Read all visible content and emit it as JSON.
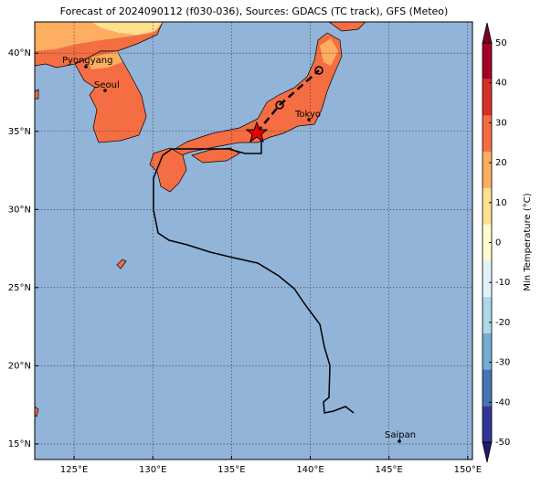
{
  "title": "Forecast of 2024090112 (f030-036), Sources: GDACS (TC track), GFS (Meteo)",
  "map": {
    "xlim": [
      122.5,
      150.3
    ],
    "ylim": [
      14,
      42
    ],
    "xticks": [
      {
        "value": 125,
        "label": "125°E"
      },
      {
        "value": 130,
        "label": "130°E"
      },
      {
        "value": 135,
        "label": "135°E"
      },
      {
        "value": 140,
        "label": "140°E"
      },
      {
        "value": 145,
        "label": "145°E"
      },
      {
        "value": 150,
        "label": "150°E"
      }
    ],
    "yticks": [
      {
        "value": 15,
        "label": "15°N"
      },
      {
        "value": 20,
        "label": "20°N"
      },
      {
        "value": 25,
        "label": "25°N"
      },
      {
        "value": 30,
        "label": "30°N"
      },
      {
        "value": 35,
        "label": "35°N"
      },
      {
        "value": 40,
        "label": "40°N"
      }
    ],
    "grid": true,
    "places": [
      "Pyongyang",
      "Seoul",
      "Tokyo",
      "Saipan"
    ]
  },
  "colorbar": {
    "label": "Min Temperature (°C)",
    "lim": [
      -50,
      50
    ],
    "ticks": [
      -50,
      -40,
      -30,
      -20,
      -10,
      0,
      10,
      20,
      30,
      40,
      50
    ],
    "colors": [
      "#313695",
      "#4575b4",
      "#74add1",
      "#abd9e9",
      "#e0f3f8",
      "#fffccf",
      "#fee090",
      "#fdae61",
      "#f46d43",
      "#d73027",
      "#a50026"
    ],
    "under_color": "#1c1c6b",
    "over_color": "#7f0020"
  }
}
